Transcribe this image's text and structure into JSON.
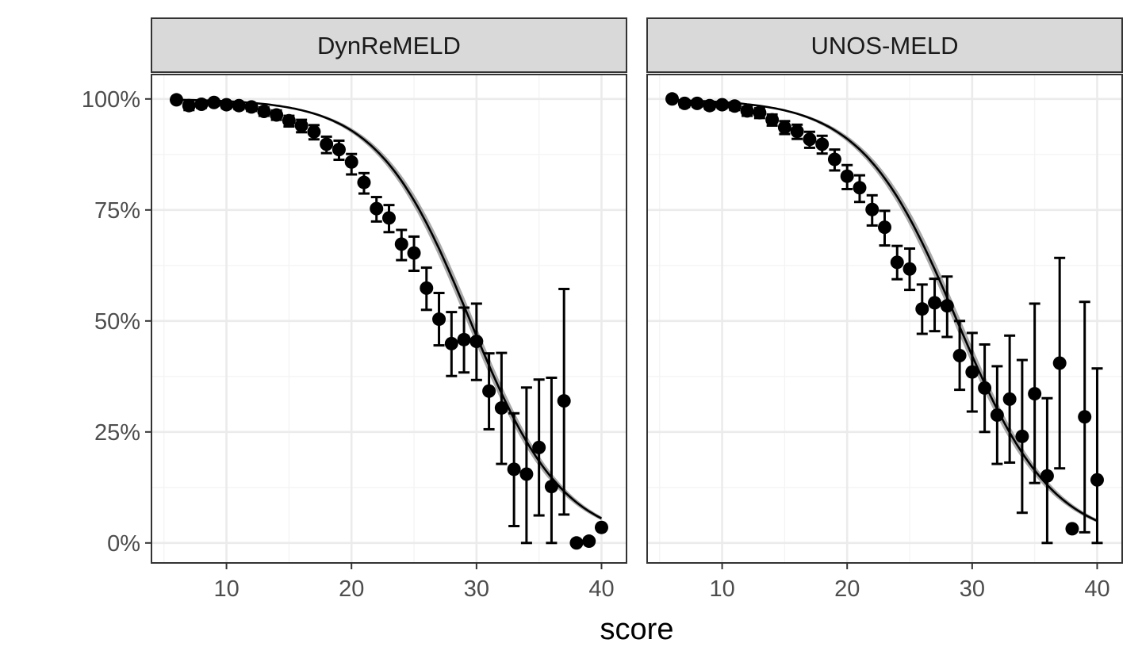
{
  "chart_data": {
    "type": "scatter",
    "xlabel": "score",
    "ylabel": "",
    "xlim": [
      4,
      42
    ],
    "ylim": [
      -0.045,
      1.055
    ],
    "x_ticks": [
      10,
      20,
      30,
      40
    ],
    "y_ticks": [
      0,
      0.25,
      0.5,
      0.75,
      1.0
    ],
    "y_tick_labels": [
      "0%",
      "25%",
      "50%",
      "75%",
      "100%"
    ],
    "grid": true,
    "colors": {
      "points": "#000000",
      "band": "#8c8c8c",
      "strip": "#d9d9d9",
      "grid_major": "#ebebeb",
      "grid_minor": "#f4f4f4",
      "border": "#333333"
    },
    "panels": [
      {
        "title": "DynReMELD",
        "points": [
          {
            "x": 6,
            "y": 0.998,
            "lo": 0.994,
            "hi": 1.0
          },
          {
            "x": 7,
            "y": 0.985,
            "lo": 0.975,
            "hi": 0.993
          },
          {
            "x": 8,
            "y": 0.988,
            "lo": 0.98,
            "hi": 0.995
          },
          {
            "x": 9,
            "y": 0.992,
            "lo": 0.985,
            "hi": 0.997
          },
          {
            "x": 10,
            "y": 0.987,
            "lo": 0.979,
            "hi": 0.993
          },
          {
            "x": 11,
            "y": 0.985,
            "lo": 0.977,
            "hi": 0.992
          },
          {
            "x": 12,
            "y": 0.982,
            "lo": 0.973,
            "hi": 0.99
          },
          {
            "x": 13,
            "y": 0.972,
            "lo": 0.962,
            "hi": 0.981
          },
          {
            "x": 14,
            "y": 0.964,
            "lo": 0.953,
            "hi": 0.974
          },
          {
            "x": 15,
            "y": 0.951,
            "lo": 0.938,
            "hi": 0.962
          },
          {
            "x": 16,
            "y": 0.94,
            "lo": 0.925,
            "hi": 0.953
          },
          {
            "x": 17,
            "y": 0.926,
            "lo": 0.909,
            "hi": 0.941
          },
          {
            "x": 18,
            "y": 0.898,
            "lo": 0.878,
            "hi": 0.915
          },
          {
            "x": 19,
            "y": 0.886,
            "lo": 0.863,
            "hi": 0.906
          },
          {
            "x": 20,
            "y": 0.858,
            "lo": 0.83,
            "hi": 0.876
          },
          {
            "x": 21,
            "y": 0.812,
            "lo": 0.787,
            "hi": 0.833
          },
          {
            "x": 22,
            "y": 0.753,
            "lo": 0.724,
            "hi": 0.779
          },
          {
            "x": 23,
            "y": 0.732,
            "lo": 0.7,
            "hi": 0.761
          },
          {
            "x": 24,
            "y": 0.673,
            "lo": 0.637,
            "hi": 0.705
          },
          {
            "x": 25,
            "y": 0.653,
            "lo": 0.613,
            "hi": 0.69
          },
          {
            "x": 26,
            "y": 0.574,
            "lo": 0.525,
            "hi": 0.62
          },
          {
            "x": 27,
            "y": 0.504,
            "lo": 0.445,
            "hi": 0.563
          },
          {
            "x": 28,
            "y": 0.449,
            "lo": 0.376,
            "hi": 0.52
          },
          {
            "x": 29,
            "y": 0.458,
            "lo": 0.384,
            "hi": 0.53
          },
          {
            "x": 30,
            "y": 0.454,
            "lo": 0.367,
            "hi": 0.539
          },
          {
            "x": 31,
            "y": 0.342,
            "lo": 0.256,
            "hi": 0.427
          },
          {
            "x": 32,
            "y": 0.304,
            "lo": 0.178,
            "hi": 0.428
          },
          {
            "x": 33,
            "y": 0.166,
            "lo": 0.038,
            "hi": 0.292
          },
          {
            "x": 34,
            "y": 0.155,
            "lo": 0.0,
            "hi": 0.35
          },
          {
            "x": 35,
            "y": 0.215,
            "lo": 0.062,
            "hi": 0.368
          },
          {
            "x": 36,
            "y": 0.127,
            "lo": 0.0,
            "hi": 0.372
          },
          {
            "x": 37,
            "y": 0.32,
            "lo": 0.064,
            "hi": 0.572
          },
          {
            "x": 38,
            "y": 0.0,
            "lo": 0.0,
            "hi": 0.0
          },
          {
            "x": 39,
            "y": 0.004,
            "lo": 0.0,
            "hi": 0.004
          },
          {
            "x": 40,
            "y": 0.035,
            "lo": 0.035,
            "hi": 0.035
          }
        ],
        "curve": {
          "midpoint": 29.5,
          "scale": 3.7
        },
        "band_halfwidth": 0.02
      },
      {
        "title": "UNOS-MELD",
        "points": [
          {
            "x": 6,
            "y": 1.0,
            "lo": 0.996,
            "hi": 1.0
          },
          {
            "x": 7,
            "y": 0.99,
            "lo": 0.982,
            "hi": 0.996
          },
          {
            "x": 8,
            "y": 0.99,
            "lo": 0.983,
            "hi": 0.996
          },
          {
            "x": 9,
            "y": 0.985,
            "lo": 0.977,
            "hi": 0.992
          },
          {
            "x": 10,
            "y": 0.987,
            "lo": 0.979,
            "hi": 0.994
          },
          {
            "x": 11,
            "y": 0.984,
            "lo": 0.975,
            "hi": 0.992
          },
          {
            "x": 12,
            "y": 0.973,
            "lo": 0.962,
            "hi": 0.982
          },
          {
            "x": 13,
            "y": 0.969,
            "lo": 0.957,
            "hi": 0.979
          },
          {
            "x": 14,
            "y": 0.953,
            "lo": 0.94,
            "hi": 0.965
          },
          {
            "x": 15,
            "y": 0.936,
            "lo": 0.921,
            "hi": 0.95
          },
          {
            "x": 16,
            "y": 0.927,
            "lo": 0.91,
            "hi": 0.942
          },
          {
            "x": 17,
            "y": 0.909,
            "lo": 0.89,
            "hi": 0.926
          },
          {
            "x": 18,
            "y": 0.898,
            "lo": 0.877,
            "hi": 0.917
          },
          {
            "x": 19,
            "y": 0.864,
            "lo": 0.839,
            "hi": 0.886
          },
          {
            "x": 20,
            "y": 0.826,
            "lo": 0.797,
            "hi": 0.851
          },
          {
            "x": 21,
            "y": 0.8,
            "lo": 0.768,
            "hi": 0.828
          },
          {
            "x": 22,
            "y": 0.751,
            "lo": 0.715,
            "hi": 0.783
          },
          {
            "x": 23,
            "y": 0.711,
            "lo": 0.67,
            "hi": 0.748
          },
          {
            "x": 24,
            "y": 0.632,
            "lo": 0.594,
            "hi": 0.669
          },
          {
            "x": 25,
            "y": 0.617,
            "lo": 0.57,
            "hi": 0.663
          },
          {
            "x": 26,
            "y": 0.527,
            "lo": 0.471,
            "hi": 0.582
          },
          {
            "x": 27,
            "y": 0.541,
            "lo": 0.477,
            "hi": 0.595
          },
          {
            "x": 28,
            "y": 0.534,
            "lo": 0.464,
            "hi": 0.6
          },
          {
            "x": 29,
            "y": 0.422,
            "lo": 0.345,
            "hi": 0.5
          },
          {
            "x": 30,
            "y": 0.385,
            "lo": 0.296,
            "hi": 0.473
          },
          {
            "x": 31,
            "y": 0.349,
            "lo": 0.25,
            "hi": 0.447
          },
          {
            "x": 32,
            "y": 0.288,
            "lo": 0.178,
            "hi": 0.398
          },
          {
            "x": 33,
            "y": 0.324,
            "lo": 0.181,
            "hi": 0.467
          },
          {
            "x": 34,
            "y": 0.24,
            "lo": 0.068,
            "hi": 0.412
          },
          {
            "x": 35,
            "y": 0.336,
            "lo": 0.135,
            "hi": 0.539
          },
          {
            "x": 36,
            "y": 0.151,
            "lo": 0.0,
            "hi": 0.326
          },
          {
            "x": 37,
            "y": 0.405,
            "lo": 0.168,
            "hi": 0.642
          },
          {
            "x": 38,
            "y": 0.032,
            "lo": 0.032,
            "hi": 0.032
          },
          {
            "x": 39,
            "y": 0.284,
            "lo": 0.024,
            "hi": 0.543
          },
          {
            "x": 40,
            "y": 0.142,
            "lo": 0.0,
            "hi": 0.393
          }
        ],
        "curve": {
          "midpoint": 28.8,
          "scale": 3.8
        },
        "band_halfwidth": 0.02
      }
    ]
  }
}
